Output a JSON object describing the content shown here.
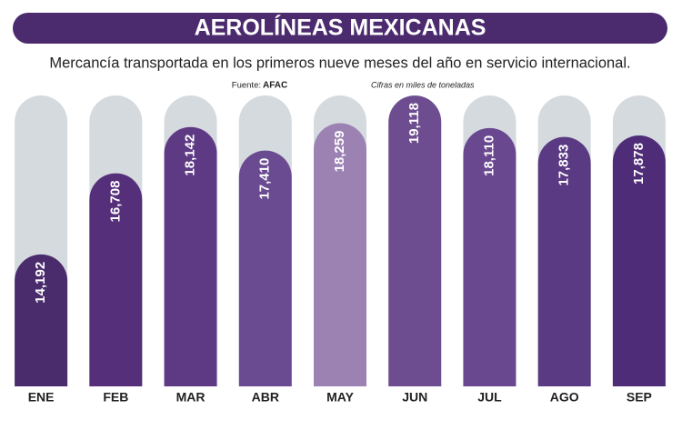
{
  "chart_data": {
    "type": "bar",
    "title": "AEROLÍNEAS MEXICANAS",
    "subtitle": "Mercancía transportada en los primeros nueve meses del año en servicio internacional.",
    "source_label": "Fuente:",
    "source": "AFAC",
    "note": "Cifras en miles de toneladas",
    "categories": [
      "ENE",
      "FEB",
      "MAR",
      "ABR",
      "MAY",
      "JUN",
      "JUL",
      "AGO",
      "SEP"
    ],
    "values": [
      14192,
      16708,
      18142,
      17410,
      18259,
      19118,
      18110,
      17833,
      17878
    ],
    "value_labels": [
      "14,192",
      "16,708",
      "18,142",
      "17,410",
      "18,259",
      "19,118",
      "18,110",
      "17,833",
      "17,878"
    ],
    "colors": [
      "#4a2b6c",
      "#562f7a",
      "#5e3a85",
      "#6a4a90",
      "#9c82b3",
      "#6d4d8f",
      "#6a4890",
      "#5b3a84",
      "#4f2c78"
    ],
    "ylim": [
      10100,
      19120
    ]
  }
}
